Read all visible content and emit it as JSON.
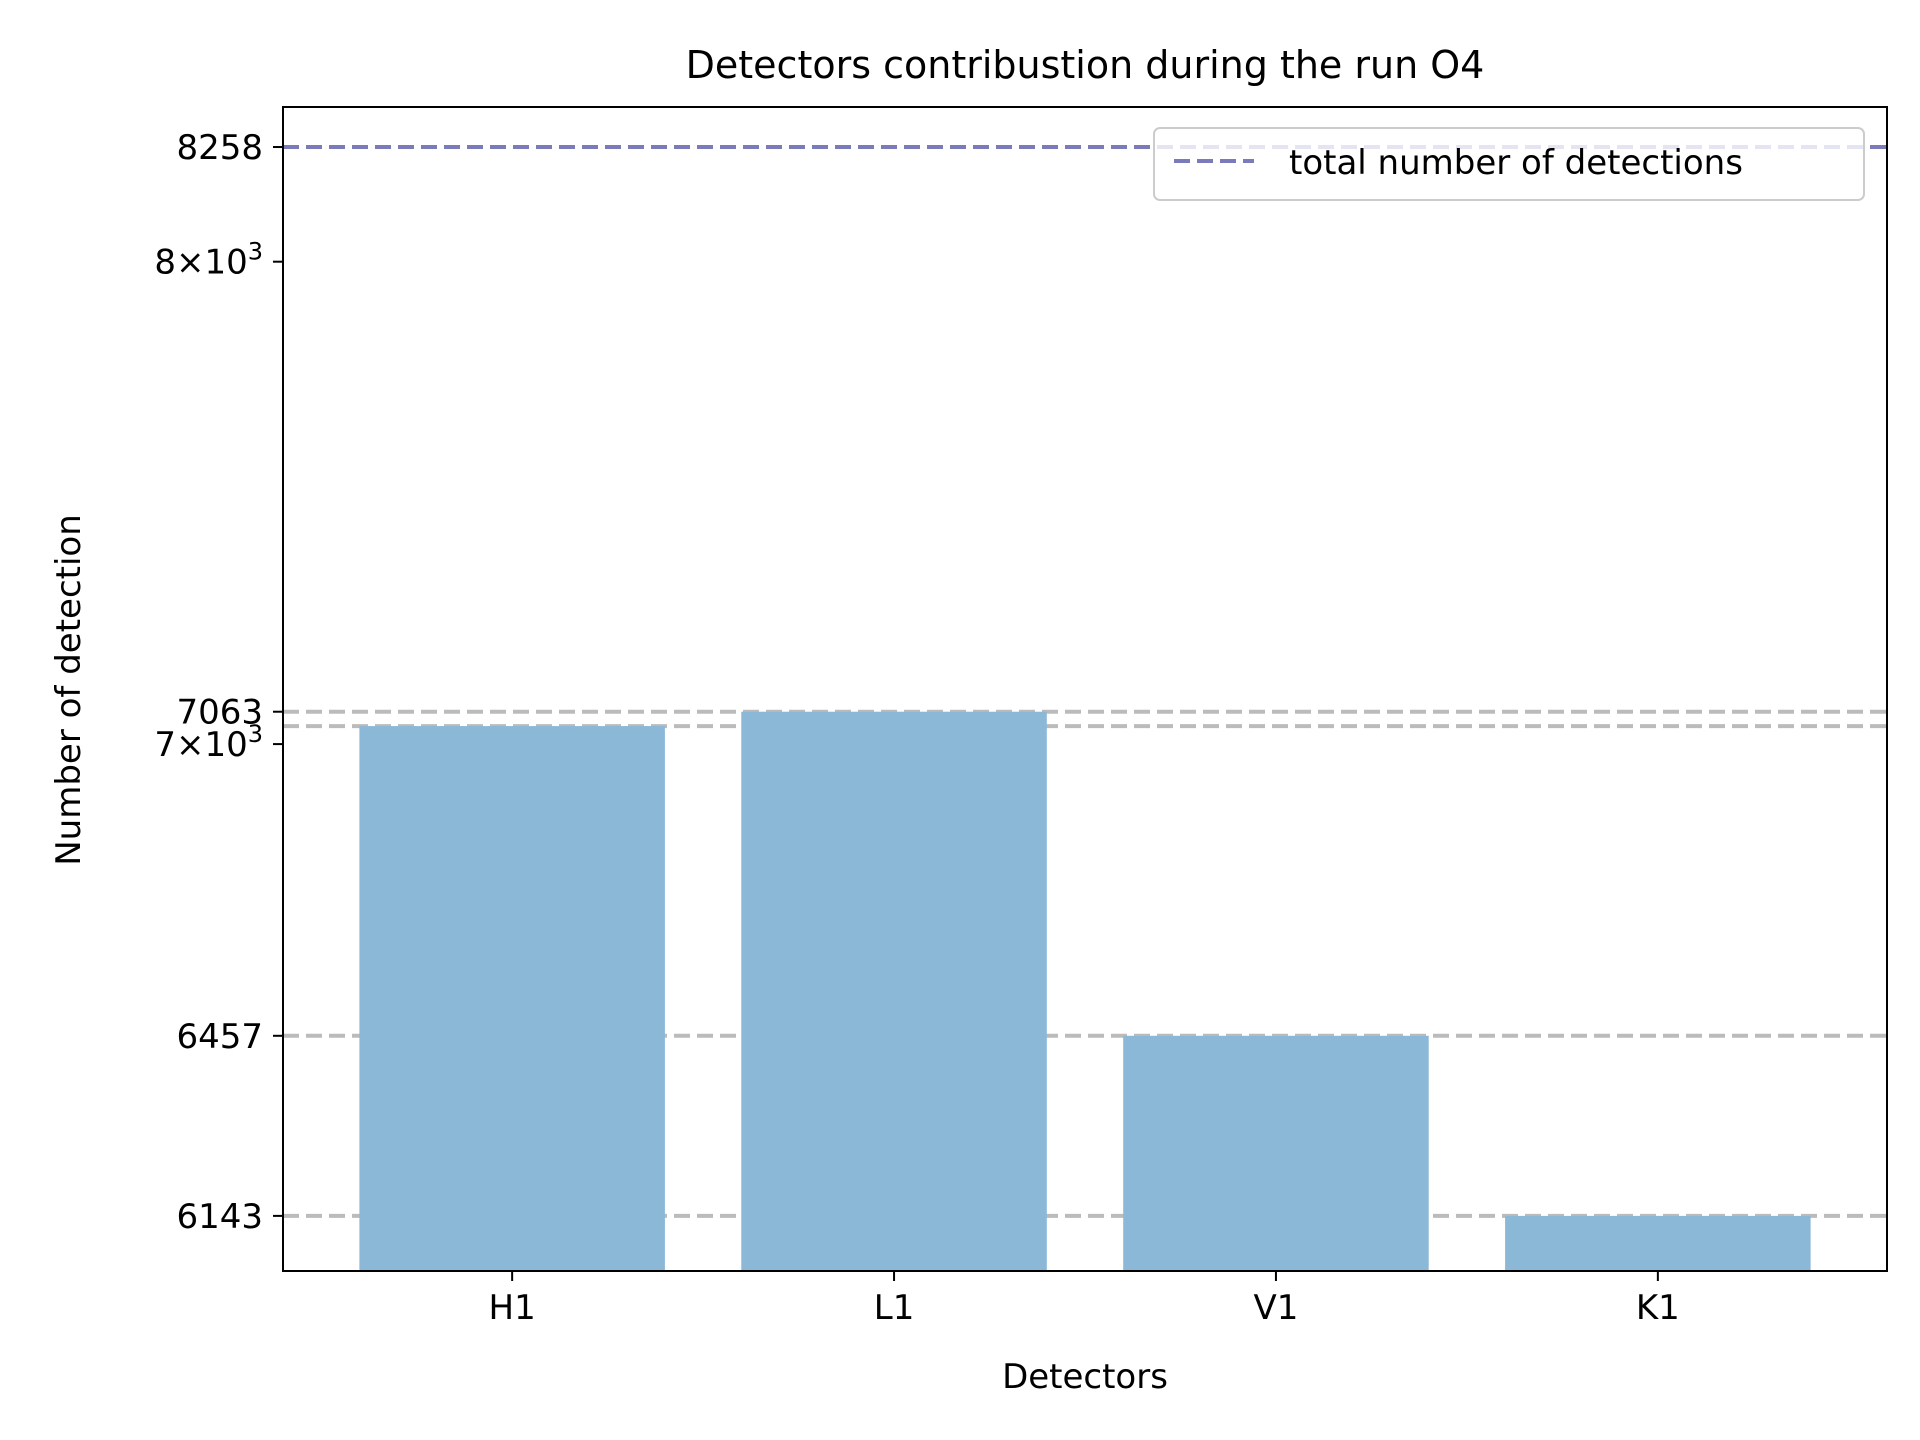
{
  "chart_data": {
    "type": "bar",
    "title": "Detectors contribustion during the run O4",
    "xlabel": "Detectors",
    "ylabel": "Number of detection",
    "scale": "log",
    "ylim": [
      6050,
      8350
    ],
    "categories": [
      "H1",
      "L1",
      "V1",
      "K1"
    ],
    "values": [
      7035,
      7063,
      6457,
      6143
    ],
    "y_ticks": [
      {
        "value": 6143,
        "label": "6143"
      },
      {
        "value": 6457,
        "label": "6457"
      },
      {
        "value": 7000,
        "label_base": "7",
        "label_mid": "×10",
        "label_exp": "3"
      },
      {
        "value": 7063,
        "label": "7063"
      },
      {
        "value": 8000,
        "label_base": "8",
        "label_mid": "×10",
        "label_exp": "3"
      },
      {
        "value": 8258,
        "label": "8258"
      }
    ],
    "reference_lines": [
      7063,
      7035,
      6457,
      6143
    ],
    "total_line": {
      "value": 8258,
      "label": "total number of detections"
    },
    "legend_position": "top-right",
    "grid": false,
    "colors": {
      "bar": "#8cb8d8",
      "reference_line": "#bbbbbb",
      "total_line": "#7b7bbc",
      "axes": "#000000"
    }
  }
}
